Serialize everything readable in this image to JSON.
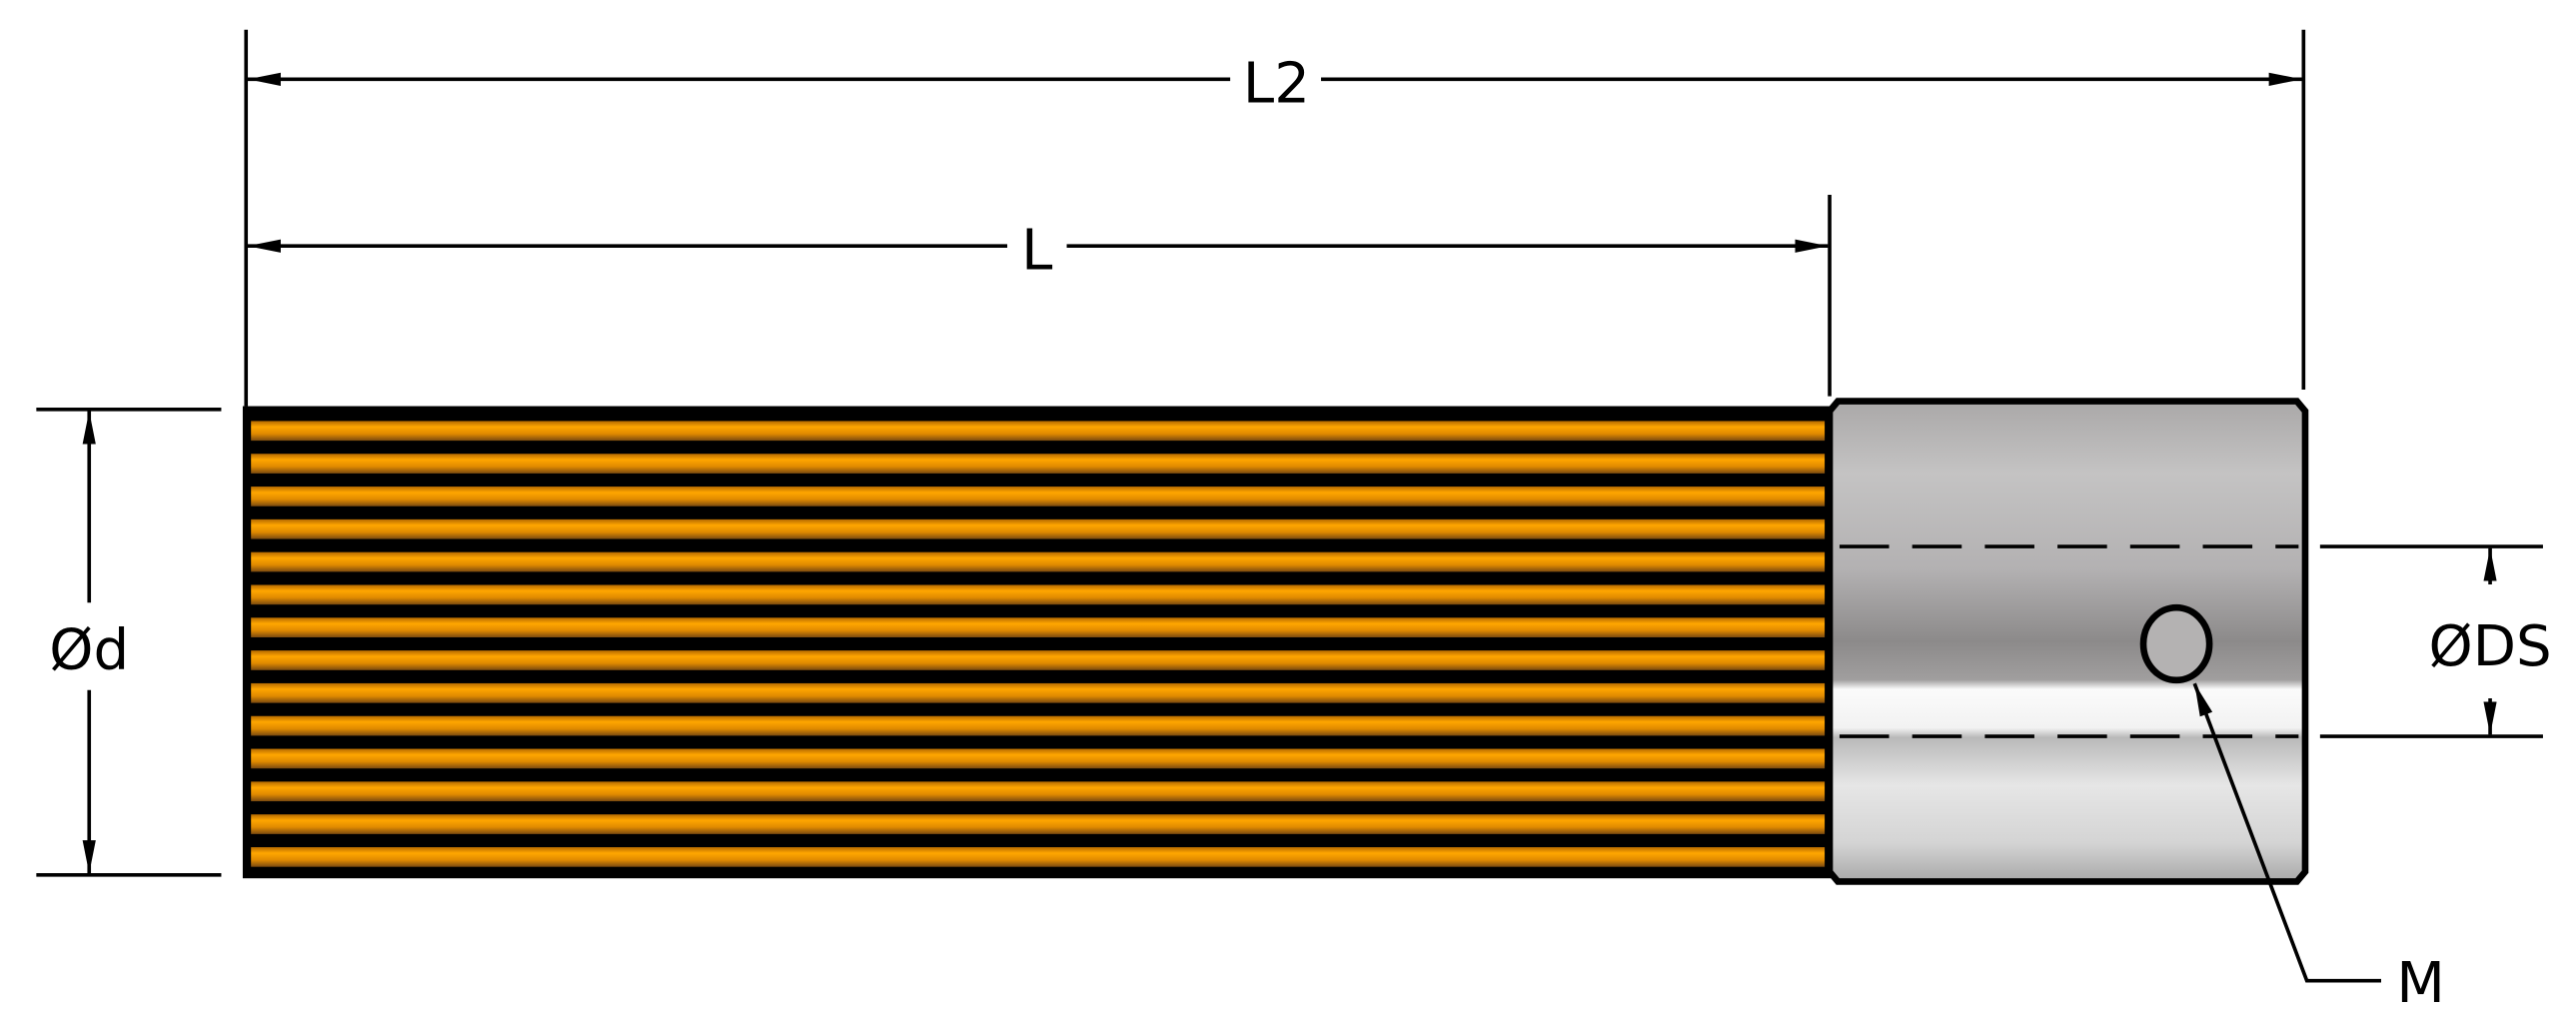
{
  "drawing": {
    "labels": {
      "overall_length": "L2",
      "toothed_length": "L",
      "outer_diameter": "Ød",
      "shaft_diameter": "ØDS",
      "set_screw": "M"
    },
    "colors": {
      "gear_tooth": "#f59a00",
      "gear_groove": "#000000",
      "hub_steel": "#b8b6b6",
      "hub_highlight": "#f8f8f8",
      "line": "#000000"
    }
  }
}
